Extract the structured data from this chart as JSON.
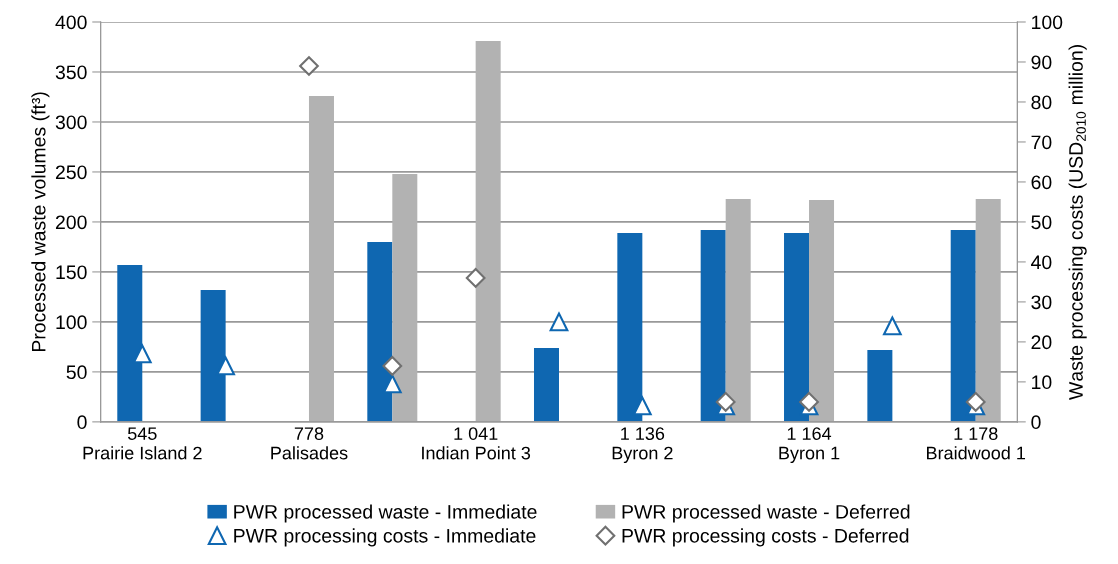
{
  "chart_data": {
    "type": "bar",
    "categories": [
      "545\nPrairie Island 2",
      null,
      "778\nPalisades",
      null,
      "1 041\nIndian Point 3",
      null,
      "1 136\nByron 2",
      null,
      "1 164\nByron 1",
      null,
      "1 178\nBraidwood 1"
    ],
    "series": [
      {
        "name": "PWR processed waste - Immediate",
        "color": "#0f67b1",
        "values": [
          157,
          132,
          null,
          180,
          null,
          74,
          189,
          192,
          189,
          72,
          192
        ]
      },
      {
        "name": "PWR processed waste - Deferred",
        "color": "#b2b2b2",
        "values": [
          null,
          null,
          326,
          248,
          381,
          null,
          null,
          223,
          222,
          null,
          223
        ]
      },
      {
        "name": "PWR processing costs - Immediate",
        "type": "scatter",
        "axis": "y2",
        "marker": "triangle",
        "color": "#0f67b1",
        "values": [
          17,
          14,
          null,
          9.5,
          null,
          25,
          4,
          4,
          4,
          24,
          4
        ]
      },
      {
        "name": "PWR processing costs - Deferred",
        "type": "scatter",
        "axis": "y2",
        "marker": "diamond",
        "color": "#707070",
        "values": [
          null,
          null,
          89,
          14,
          36,
          null,
          null,
          5,
          5,
          null,
          5
        ]
      }
    ],
    "ylabel": "Processed waste volumes (ft³)",
    "y2label": "Waste processing costs (USD$_{2010}$ million)",
    "ylim": [
      0,
      400
    ],
    "yticks": [
      0,
      50,
      100,
      150,
      200,
      250,
      300,
      350,
      400
    ],
    "y2lim": [
      0,
      100
    ],
    "y2ticks": [
      0,
      10,
      20,
      30,
      40,
      50,
      60,
      70,
      80,
      90,
      100
    ],
    "grid": "y",
    "legend": "bottom"
  }
}
